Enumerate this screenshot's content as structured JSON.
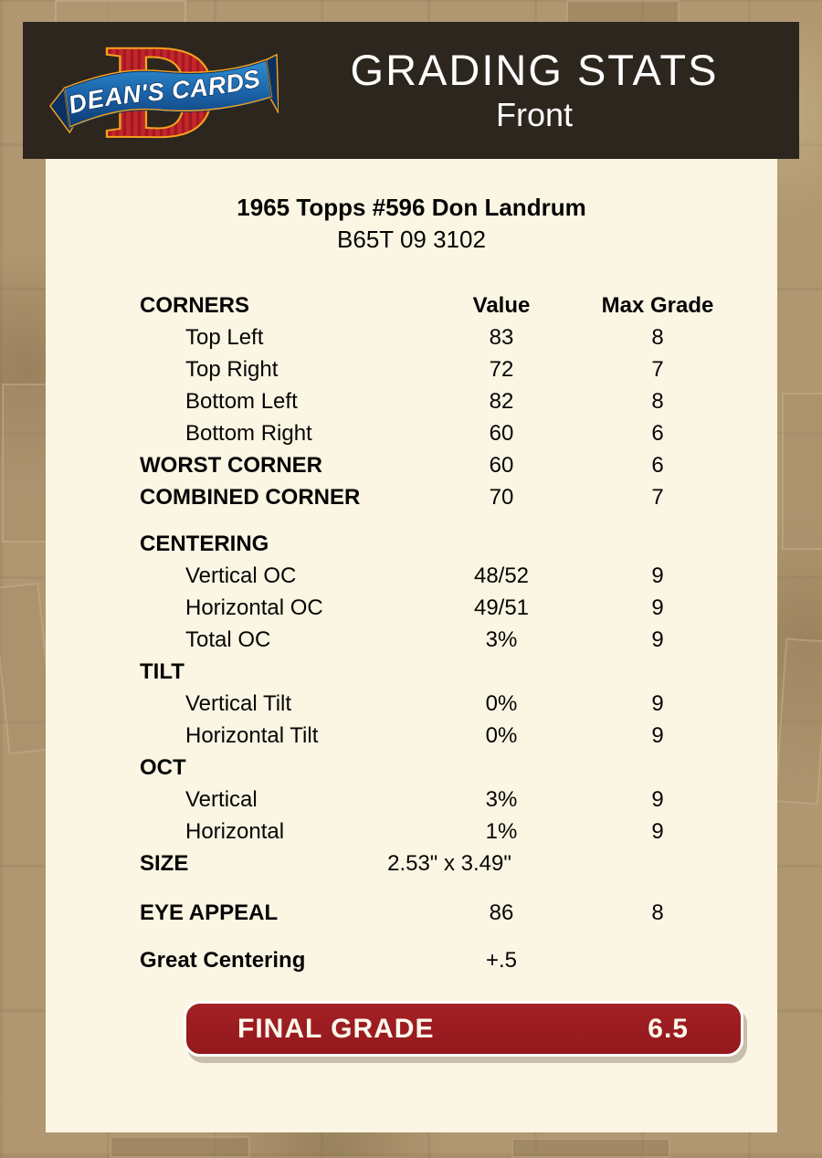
{
  "header": {
    "logo": {
      "letter": "D",
      "brand": "DEAN'S CARDS"
    },
    "title": "GRADING STATS",
    "subtitle": "Front"
  },
  "card": {
    "title": "1965 Topps #596 Don Landrum",
    "code": "B65T 09 3102"
  },
  "table": {
    "rows": [
      {
        "label": "CORNERS",
        "value": "Value",
        "max": "Max Grade",
        "kind": "head"
      },
      {
        "label": "Top Left",
        "value": "83",
        "max": "8",
        "kind": "item"
      },
      {
        "label": "Top Right",
        "value": "72",
        "max": "7",
        "kind": "item"
      },
      {
        "label": "Bottom Left",
        "value": "82",
        "max": "8",
        "kind": "item"
      },
      {
        "label": "Bottom Right",
        "value": "60",
        "max": "6",
        "kind": "item"
      },
      {
        "label": "WORST CORNER",
        "value": "60",
        "max": "6",
        "kind": "section"
      },
      {
        "label": "COMBINED CORNER",
        "value": "70",
        "max": "7",
        "kind": "section"
      },
      {
        "label": "CENTERING",
        "value": "",
        "max": "",
        "kind": "section",
        "gap": 16
      },
      {
        "label": "Vertical OC",
        "value": "48/52",
        "max": "9",
        "kind": "item"
      },
      {
        "label": "Horizontal OC",
        "value": "49/51",
        "max": "9",
        "kind": "item"
      },
      {
        "label": "Total OC",
        "value": "3%",
        "max": "9",
        "kind": "item"
      },
      {
        "label": "TILT",
        "value": "",
        "max": "",
        "kind": "section"
      },
      {
        "label": "Vertical Tilt",
        "value": "0%",
        "max": "9",
        "kind": "item"
      },
      {
        "label": "Horizontal Tilt",
        "value": "0%",
        "max": "9",
        "kind": "item"
      },
      {
        "label": "OCT",
        "value": "",
        "max": "",
        "kind": "section"
      },
      {
        "label": "Vertical",
        "value": "3%",
        "max": "9",
        "kind": "item"
      },
      {
        "label": "Horizontal",
        "value": "1%",
        "max": "9",
        "kind": "item"
      },
      {
        "label": "SIZE",
        "value": "2.53\" x 3.49\"",
        "max": "",
        "kind": "section",
        "value_shift": true
      },
      {
        "label": "EYE APPEAL",
        "value": "86",
        "max": "8",
        "kind": "section",
        "gap": 19
      },
      {
        "label": "Great Centering",
        "value": "+.5",
        "max": "",
        "kind": "section",
        "gap": 17
      }
    ]
  },
  "final_grade": {
    "label": "FINAL GRADE",
    "value": "6.5"
  },
  "colors": {
    "page_bg": "#b09771",
    "header_bg": "#2d261e",
    "panel_bg": "#fbf5e3",
    "grade_red": "#9b1b1e",
    "logo_red": "#c6252b",
    "logo_blue": "#1b63a8",
    "logo_orange": "#f6a21d",
    "text": "#050505"
  }
}
